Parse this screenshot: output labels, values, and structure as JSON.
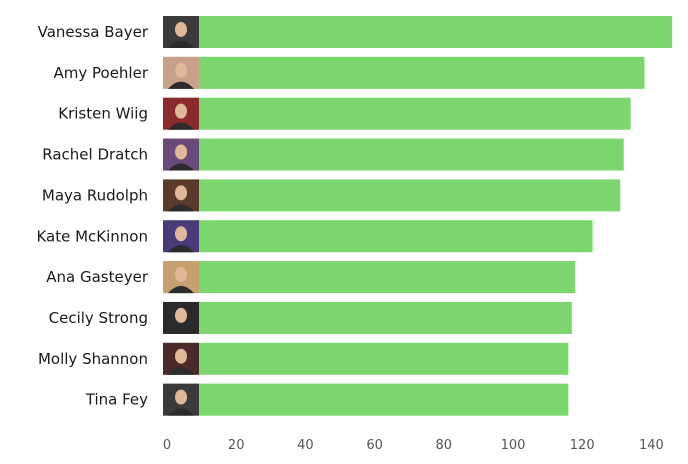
{
  "chart_data": {
    "type": "bar",
    "orientation": "horizontal",
    "categories": [
      "Vanessa Bayer",
      "Amy Poehler",
      "Kristen Wiig",
      "Rachel Dratch",
      "Maya Rudolph",
      "Kate McKinnon",
      "Ana Gasteyer",
      "Cecily Strong",
      "Molly Shannon",
      "Tina Fey"
    ],
    "values": [
      146,
      138,
      134,
      132,
      131,
      123,
      118,
      117,
      116,
      116
    ],
    "xlim": [
      0,
      146
    ],
    "xticks": [
      0,
      20,
      40,
      60,
      80,
      100,
      120,
      140
    ],
    "grid": false,
    "bar_color": "#7ad66d",
    "thumbnail_colors": [
      "#3a3a3a",
      "#c9a08a",
      "#8a2a2a",
      "#6a4a7a",
      "#5a3a2a",
      "#4a3a7a",
      "#c8a070",
      "#2a2a2a",
      "#4a2a2a",
      "#3a3a3a"
    ]
  }
}
